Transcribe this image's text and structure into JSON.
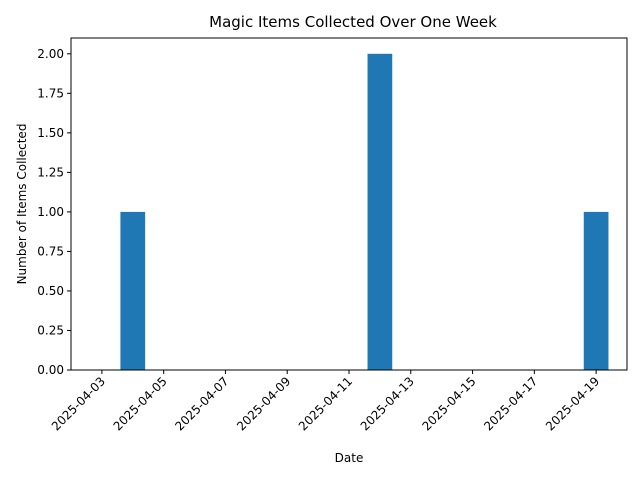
{
  "chart_data": {
    "type": "bar",
    "title": "Magic Items Collected Over One Week",
    "xlabel": "Date",
    "ylabel": "Number of Items Collected",
    "bars": [
      {
        "date": "2025-04-04",
        "value": 1
      },
      {
        "date": "2025-04-12",
        "value": 2
      },
      {
        "date": "2025-04-19",
        "value": 1
      }
    ],
    "xlim": [
      "2025-04-02",
      "2025-04-20"
    ],
    "ylim": [
      0,
      2.1
    ],
    "x_ticks": [
      "2025-04-03",
      "2025-04-05",
      "2025-04-07",
      "2025-04-09",
      "2025-04-11",
      "2025-04-13",
      "2025-04-15",
      "2025-04-17",
      "2025-04-19"
    ],
    "y_ticks": [
      "0.00",
      "0.25",
      "0.50",
      "0.75",
      "1.00",
      "1.25",
      "1.50",
      "1.75",
      "2.00"
    ],
    "bar_color": "#1f77b4",
    "grid": false,
    "legend": "none"
  }
}
